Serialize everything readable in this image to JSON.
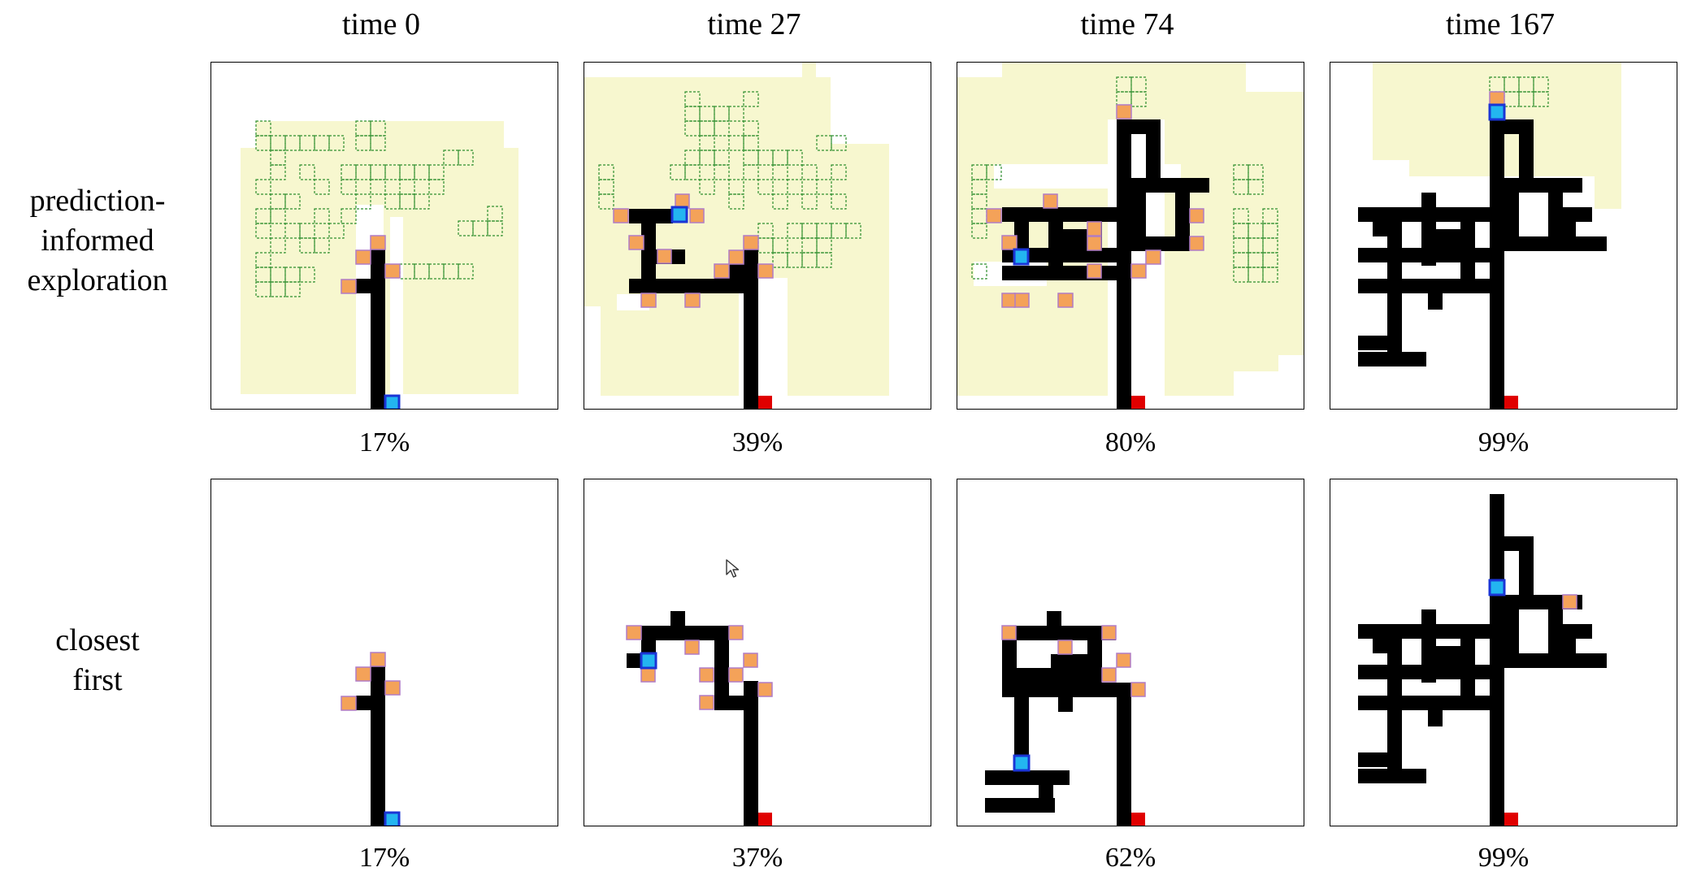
{
  "columns": [
    {
      "title": "time 0"
    },
    {
      "title": "time 27"
    },
    {
      "title": "time 74"
    },
    {
      "title": "time 167"
    }
  ],
  "rows": [
    {
      "label_lines": [
        "prediction-",
        "informed",
        "exploration"
      ],
      "coverage": [
        "17%",
        "39%",
        "80%",
        "99%"
      ]
    },
    {
      "label_lines": [
        "closest",
        "first"
      ],
      "coverage": [
        "17%",
        "37%",
        "62%",
        "99%"
      ]
    }
  ],
  "colors": {
    "explored": "#000000",
    "predicted_region": "#f7f7cf",
    "predicted_cell_stroke": "#2f8f2f",
    "frontier_fill": "#f4a259",
    "frontier_stroke": "#b07cc6",
    "robot_fill": "#23b5f0",
    "robot_stroke": "#1a35d6",
    "start_marker": "#e00000"
  },
  "icons": {
    "cursor": "mouse-pointer-icon",
    "robot": "robot-position-icon",
    "frontier": "frontier-cell-icon",
    "start": "start-marker-icon"
  }
}
